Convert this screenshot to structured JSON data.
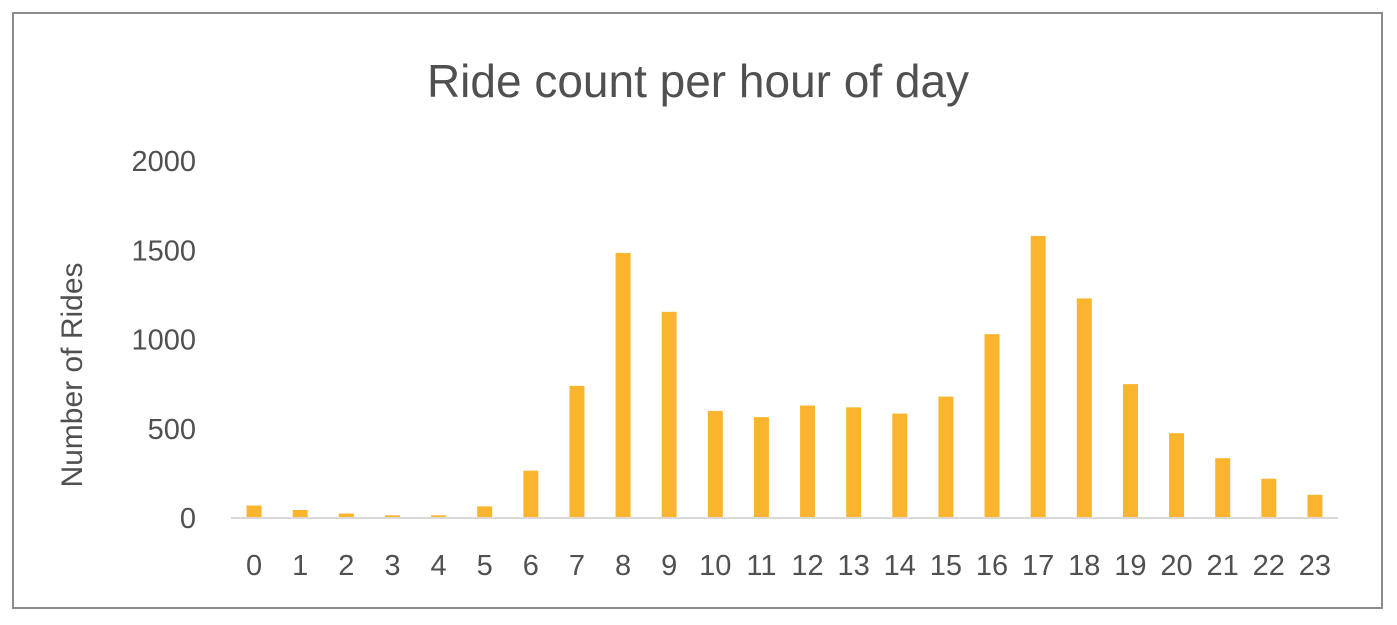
{
  "chart_data": {
    "type": "bar",
    "title": "Ride count per hour of day",
    "xlabel": "",
    "ylabel": "Number of Rides",
    "categories": [
      "0",
      "1",
      "2",
      "3",
      "4",
      "5",
      "6",
      "7",
      "8",
      "9",
      "10",
      "11",
      "12",
      "13",
      "14",
      "15",
      "16",
      "17",
      "18",
      "19",
      "20",
      "21",
      "22",
      "23"
    ],
    "values": [
      70,
      45,
      25,
      15,
      15,
      65,
      265,
      740,
      1485,
      1155,
      600,
      565,
      630,
      620,
      585,
      680,
      1030,
      1580,
      1230,
      750,
      475,
      335,
      220,
      130
    ],
    "yticks": [
      "0",
      "500",
      "1000",
      "1500",
      "2000"
    ],
    "ylim": [
      0,
      2000
    ],
    "grid": false,
    "legend": "none",
    "bar_color": "#FBB42D",
    "axis_color": "#D9D9D9",
    "text_color": "#505050"
  }
}
